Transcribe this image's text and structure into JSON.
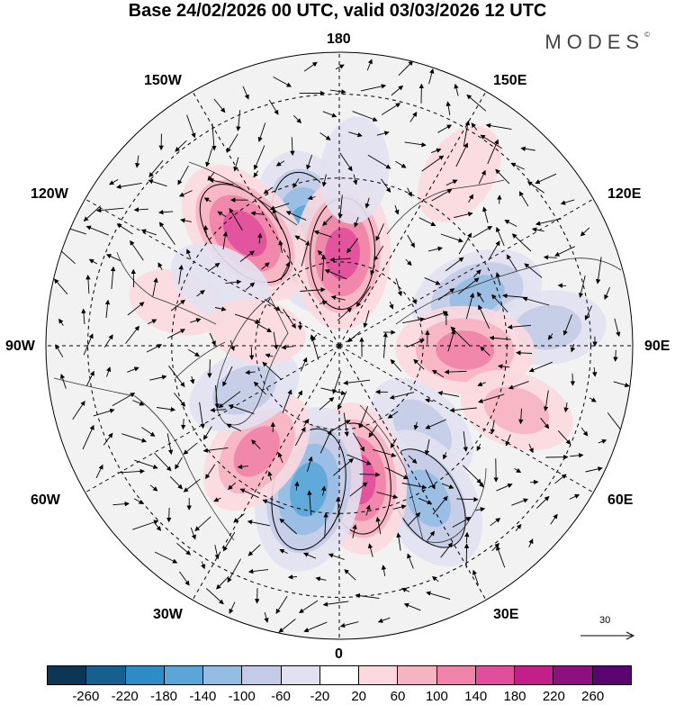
{
  "title": "Base 24/02/2026 00 UTC, valid 03/03/2026 12 UTC",
  "brand": "MODES",
  "brand_mark": "©",
  "longitude_labels": {
    "lon_180": "180",
    "lon_150w": "150W",
    "lon_150e": "150E",
    "lon_120w": "120W",
    "lon_120e": "120E",
    "lon_90w": "90W",
    "lon_90e": "90E",
    "lon_60w": "60W",
    "lon_60e": "60E",
    "lon_30w": "30W",
    "lon_30e": "30E",
    "lon_0": "0"
  },
  "vector_scale_label": "30",
  "colorbar": {
    "colors": [
      "#0d3554",
      "#15608f",
      "#2d8cc6",
      "#5aa6d7",
      "#95bde3",
      "#c3cbe6",
      "#e2e1f1",
      "#ffffff",
      "#fbd9df",
      "#f6b3c2",
      "#ef83a9",
      "#e14f9c",
      "#c21f8a",
      "#8e0f80",
      "#5a0470"
    ],
    "tick_labels": [
      "-260",
      "-220",
      "-180",
      "-140",
      "-100",
      "-60",
      "-20",
      "20",
      "60",
      "100",
      "140",
      "180",
      "220",
      "260"
    ]
  },
  "anomaly_blobs": [
    {
      "kind": "neg",
      "lat": 62,
      "lon": -165,
      "strength": -190
    },
    {
      "kind": "pos",
      "lat": 55,
      "lon": -140,
      "strength": 170
    },
    {
      "kind": "pos",
      "lat": 68,
      "lon": 178,
      "strength": 160
    },
    {
      "kind": "neg",
      "lat": 48,
      "lon": 175,
      "strength": -60
    },
    {
      "kind": "pos",
      "lat": 40,
      "lon": 145,
      "strength": 60
    },
    {
      "kind": "neg",
      "lat": 55,
      "lon": 110,
      "strength": -120
    },
    {
      "kind": "neg",
      "lat": 40,
      "lon": 95,
      "strength": -80
    },
    {
      "kind": "pos",
      "lat": 60,
      "lon": 88,
      "strength": 130
    },
    {
      "kind": "pos",
      "lat": 45,
      "lon": 70,
      "strength": 80
    },
    {
      "kind": "neg",
      "lat": 62,
      "lon": 45,
      "strength": -90
    },
    {
      "kind": "neg",
      "lat": 48,
      "lon": 30,
      "strength": -150
    },
    {
      "kind": "pos",
      "lat": 58,
      "lon": 8,
      "strength": 160
    },
    {
      "kind": "neg",
      "lat": 55,
      "lon": -12,
      "strength": -190
    },
    {
      "kind": "pos",
      "lat": 58,
      "lon": -38,
      "strength": 120
    },
    {
      "kind": "neg",
      "lat": 65,
      "lon": -65,
      "strength": -80
    },
    {
      "kind": "pos",
      "lat": 50,
      "lon": -105,
      "strength": 40
    },
    {
      "kind": "neg",
      "lat": 58,
      "lon": -118,
      "strength": -60
    },
    {
      "kind": "pos",
      "lat": 70,
      "lon": -100,
      "strength": 40
    }
  ]
}
